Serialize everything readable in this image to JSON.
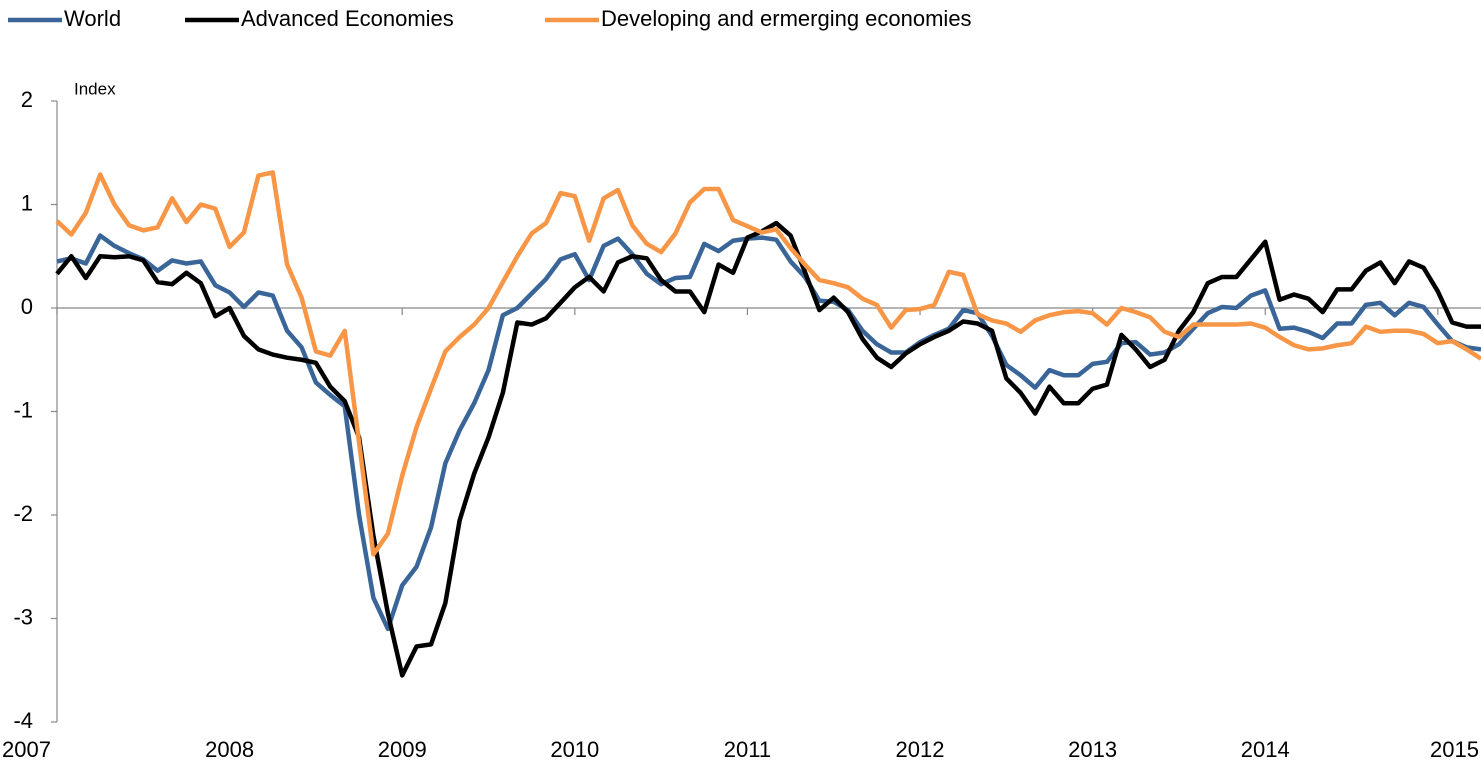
{
  "chart_data": {
    "type": "line",
    "y_label": "Index",
    "legend": "top",
    "xlim": [
      2007,
      2015.25
    ],
    "xticks": [
      2007,
      2008,
      2009,
      2010,
      2011,
      2012,
      2013,
      2014,
      2015
    ],
    "ylim": [
      -4,
      2
    ],
    "yticks": [
      -4,
      -3,
      -2,
      -1,
      0,
      1,
      2
    ],
    "x": [
      2007,
      2007.083,
      2007.167,
      2007.25,
      2007.333,
      2007.417,
      2007.5,
      2007.583,
      2007.667,
      2007.75,
      2007.833,
      2007.917,
      2008,
      2008.083,
      2008.167,
      2008.25,
      2008.333,
      2008.417,
      2008.5,
      2008.583,
      2008.667,
      2008.75,
      2008.833,
      2008.917,
      2009,
      2009.083,
      2009.167,
      2009.25,
      2009.333,
      2009.417,
      2009.5,
      2009.583,
      2009.667,
      2009.75,
      2009.833,
      2009.917,
      2010,
      2010.083,
      2010.167,
      2010.25,
      2010.333,
      2010.417,
      2010.5,
      2010.583,
      2010.667,
      2010.75,
      2010.833,
      2010.917,
      2011,
      2011.083,
      2011.167,
      2011.25,
      2011.333,
      2011.417,
      2011.5,
      2011.583,
      2011.667,
      2011.75,
      2011.833,
      2011.917,
      2012,
      2012.083,
      2012.167,
      2012.25,
      2012.333,
      2012.417,
      2012.5,
      2012.583,
      2012.667,
      2012.75,
      2012.833,
      2012.917,
      2013,
      2013.083,
      2013.167,
      2013.25,
      2013.333,
      2013.417,
      2013.5,
      2013.583,
      2013.667,
      2013.75,
      2013.833,
      2013.917,
      2014,
      2014.083,
      2014.167,
      2014.25,
      2014.333,
      2014.417,
      2014.5,
      2014.583,
      2014.667,
      2014.75,
      2014.833,
      2014.917,
      2015,
      2015.083,
      2015.167,
      2015.25
    ],
    "series": [
      {
        "name": "World",
        "color": "#3a6598",
        "values": [
          0.45,
          0.48,
          0.43,
          0.7,
          0.6,
          0.53,
          0.47,
          0.36,
          0.46,
          0.43,
          0.45,
          0.22,
          0.15,
          0.01,
          0.15,
          0.12,
          -0.22,
          -0.38,
          -0.72,
          -0.84,
          -0.95,
          -2.0,
          -2.8,
          -3.1,
          -2.68,
          -2.5,
          -2.12,
          -1.5,
          -1.18,
          -0.92,
          -0.6,
          -0.07,
          0.0,
          0.14,
          0.28,
          0.47,
          0.52,
          0.27,
          0.6,
          0.67,
          0.52,
          0.33,
          0.23,
          0.29,
          0.3,
          0.62,
          0.55,
          0.65,
          0.67,
          0.68,
          0.66,
          0.45,
          0.3,
          0.07,
          0.06,
          -0.02,
          -0.22,
          -0.35,
          -0.43,
          -0.43,
          -0.33,
          -0.26,
          -0.2,
          -0.02,
          -0.05,
          -0.27,
          -0.55,
          -0.65,
          -0.77,
          -0.6,
          -0.65,
          -0.65,
          -0.54,
          -0.52,
          -0.34,
          -0.33,
          -0.45,
          -0.43,
          -0.35,
          -0.2,
          -0.05,
          0.01,
          0.0,
          0.12,
          0.17,
          -0.2,
          -0.19,
          -0.23,
          -0.29,
          -0.15,
          -0.15,
          0.03,
          0.05,
          -0.07,
          0.05,
          0.01,
          -0.16,
          -0.32,
          -0.38,
          -0.4
        ]
      },
      {
        "name": "Advanced Economies",
        "color": "#000000",
        "values": [
          0.33,
          0.5,
          0.29,
          0.5,
          0.49,
          0.5,
          0.46,
          0.25,
          0.23,
          0.34,
          0.24,
          -0.08,
          0.0,
          -0.27,
          -0.4,
          -0.45,
          -0.48,
          -0.5,
          -0.53,
          -0.76,
          -0.9,
          -1.25,
          -2.2,
          -2.95,
          -3.55,
          -3.27,
          -3.25,
          -2.85,
          -2.05,
          -1.6,
          -1.25,
          -0.82,
          -0.14,
          -0.16,
          -0.1,
          0.05,
          0.2,
          0.3,
          0.16,
          0.44,
          0.5,
          0.48,
          0.27,
          0.16,
          0.16,
          -0.04,
          0.42,
          0.34,
          0.68,
          0.74,
          0.82,
          0.7,
          0.35,
          -0.02,
          0.1,
          -0.04,
          -0.3,
          -0.48,
          -0.57,
          -0.44,
          -0.35,
          -0.28,
          -0.22,
          -0.13,
          -0.15,
          -0.22,
          -0.68,
          -0.82,
          -1.02,
          -0.76,
          -0.92,
          -0.92,
          -0.78,
          -0.74,
          -0.26,
          -0.4,
          -0.57,
          -0.5,
          -0.22,
          -0.04,
          0.24,
          0.3,
          0.3,
          0.47,
          0.64,
          0.08,
          0.13,
          0.09,
          -0.04,
          0.18,
          0.18,
          0.36,
          0.44,
          0.24,
          0.45,
          0.39,
          0.16,
          -0.14,
          -0.18,
          -0.18
        ]
      },
      {
        "name": "Developing and ermerging economies",
        "color": "#f79646",
        "values": [
          0.84,
          0.71,
          0.92,
          1.29,
          1.0,
          0.8,
          0.75,
          0.78,
          1.06,
          0.83,
          1.0,
          0.96,
          0.59,
          0.73,
          1.28,
          1.31,
          0.42,
          0.1,
          -0.42,
          -0.46,
          -0.22,
          -1.3,
          -2.38,
          -2.18,
          -1.62,
          -1.15,
          -0.78,
          -0.42,
          -0.28,
          -0.16,
          0.0,
          0.25,
          0.5,
          0.72,
          0.82,
          1.11,
          1.08,
          0.65,
          1.06,
          1.14,
          0.8,
          0.62,
          0.54,
          0.72,
          1.02,
          1.15,
          1.15,
          0.85,
          0.79,
          0.73,
          0.76,
          0.58,
          0.42,
          0.27,
          0.24,
          0.2,
          0.09,
          0.03,
          -0.19,
          -0.02,
          -0.01,
          0.03,
          0.35,
          0.32,
          -0.06,
          -0.12,
          -0.15,
          -0.23,
          -0.12,
          -0.07,
          -0.04,
          -0.03,
          -0.05,
          -0.16,
          0.0,
          -0.04,
          -0.09,
          -0.23,
          -0.28,
          -0.16,
          -0.16,
          -0.16,
          -0.16,
          -0.15,
          -0.19,
          -0.28,
          -0.36,
          -0.4,
          -0.39,
          -0.36,
          -0.34,
          -0.18,
          -0.23,
          -0.22,
          -0.22,
          -0.25,
          -0.34,
          -0.32,
          -0.4,
          -0.49
        ]
      }
    ]
  }
}
